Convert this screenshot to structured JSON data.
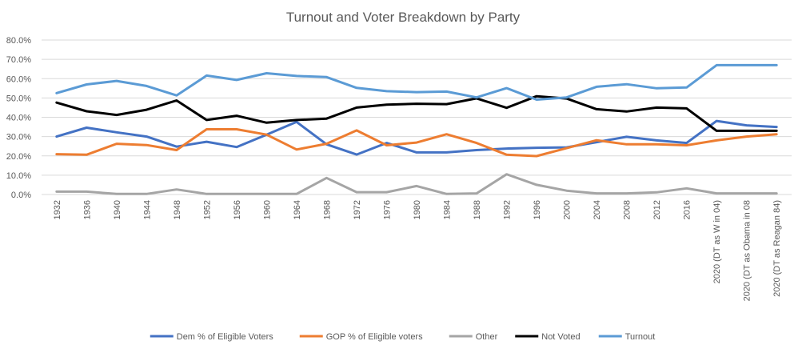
{
  "chart_data": {
    "type": "line",
    "title": "Turnout and Voter Breakdown by Party",
    "xlabel": "",
    "ylabel": "",
    "ylim": [
      0,
      80
    ],
    "y_ticks": [
      "0.0%",
      "10.0%",
      "20.0%",
      "30.0%",
      "40.0%",
      "50.0%",
      "60.0%",
      "70.0%",
      "80.0%"
    ],
    "grid": true,
    "legend_position": "bottom",
    "categories": [
      "1932",
      "1936",
      "1940",
      "1944",
      "1948",
      "1952",
      "1956",
      "1960",
      "1964",
      "1968",
      "1972",
      "1976",
      "1980",
      "1984",
      "1988",
      "1992",
      "1996",
      "2000",
      "2004",
      "2008",
      "2012",
      "2016",
      "2020 (DT as W in 04)",
      "2020 (DT as Obama in 08",
      "2020 (DT as Reagan 84)"
    ],
    "series": [
      {
        "name": "Dem % of Eligible Voters",
        "color": "#4472c4",
        "values": [
          30.0,
          34.6,
          32.2,
          30.0,
          24.8,
          27.3,
          24.6,
          31.0,
          37.6,
          26.0,
          20.7,
          26.7,
          21.8,
          21.8,
          23.0,
          23.8,
          24.2,
          24.4,
          27.1,
          29.9,
          28.0,
          26.7,
          38.1,
          35.8,
          35.0
        ]
      },
      {
        "name": "GOP % of Eligible voters",
        "color": "#ed7d31",
        "values": [
          20.9,
          20.6,
          26.3,
          25.6,
          23.0,
          33.8,
          33.8,
          31.0,
          23.3,
          26.3,
          33.2,
          25.5,
          26.9,
          31.2,
          26.7,
          20.6,
          19.9,
          24.0,
          28.1,
          26.0,
          26.0,
          25.5,
          28.0,
          30.0,
          31.2
        ]
      },
      {
        "name": "Other",
        "color": "#a5a5a5",
        "values": [
          1.5,
          1.5,
          0.3,
          0.3,
          2.6,
          0.3,
          0.3,
          0.3,
          0.3,
          8.6,
          1.2,
          1.2,
          4.4,
          0.3,
          0.6,
          10.5,
          5.0,
          2.0,
          0.6,
          0.6,
          1.1,
          3.2,
          0.6,
          0.6,
          0.6
        ]
      },
      {
        "name": "Not Voted",
        "color": "#000000",
        "values": [
          47.6,
          43.1,
          41.2,
          43.9,
          48.7,
          38.6,
          40.8,
          37.2,
          38.6,
          39.3,
          45.0,
          46.5,
          47.0,
          46.8,
          49.8,
          44.9,
          50.9,
          49.7,
          44.2,
          43.0,
          45.0,
          44.6,
          33.0,
          33.0,
          33.0
        ]
      },
      {
        "name": "Turnout",
        "color": "#5b9bd5",
        "values": [
          52.5,
          57.0,
          58.8,
          56.2,
          51.3,
          61.6,
          59.3,
          62.8,
          61.4,
          60.8,
          55.2,
          53.5,
          53.0,
          53.3,
          50.3,
          55.1,
          49.1,
          50.3,
          55.8,
          57.1,
          55.0,
          55.4,
          67.0,
          67.0,
          67.0
        ]
      }
    ]
  }
}
